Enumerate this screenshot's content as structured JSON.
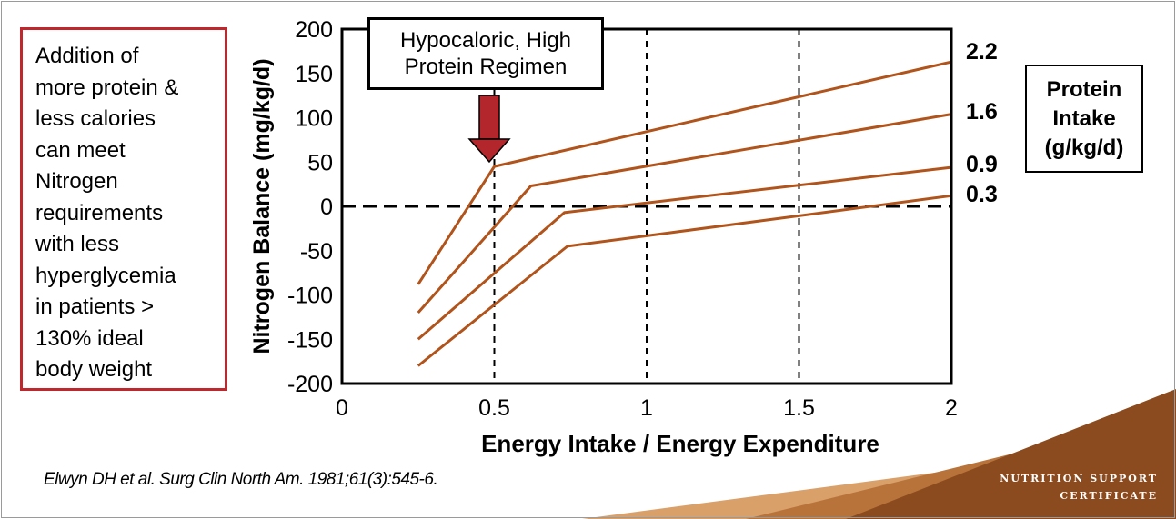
{
  "note": {
    "lines": [
      "Addition of",
      "more protein &",
      "less calories",
      "can meet",
      "Nitrogen",
      "requirements",
      "with less",
      "hyperglycemia",
      "in patients >",
      "130% ideal",
      "body weight"
    ]
  },
  "callout": {
    "lines": [
      "Hypocaloric, High",
      "Protein Regimen"
    ]
  },
  "legend": {
    "title_lines": [
      "Protein",
      "Intake",
      "(g/kg/d)"
    ]
  },
  "citation": "Elwyn DH et al. Surg Clin North Am. 1981;61(3):545-6.",
  "brand": {
    "line1": "NUTRITION SUPPORT",
    "line2": "CERTIFICATE"
  },
  "colors": {
    "series": "#b0541c",
    "arrow": "#b3262c",
    "note_border": "#c0272d",
    "decor_dark": "#8b4b1e",
    "decor_mid": "#b8733a",
    "decor_light": "#d9a06a"
  },
  "chart_data": {
    "type": "line",
    "title": "",
    "xlabel": "Energy Intake / Energy Expenditure",
    "ylabel": "Nitrogen Balance (mg/kg/d)",
    "xlim": [
      0,
      2
    ],
    "ylim": [
      -200,
      200
    ],
    "x_ticks": [
      "0",
      "0.5",
      "1",
      "1.5",
      "2"
    ],
    "y_ticks": [
      "200",
      "150",
      "100",
      "50",
      "0",
      "-50",
      "-100",
      "-150",
      "-200"
    ],
    "grid": "dashed vertical lines at x = 0.5, 1, 1.5; dashed horizontal line at y = 0",
    "legend_title": "Protein Intake (g/kg/d)",
    "legend_position": "right",
    "series": [
      {
        "name": "2.2",
        "points": [
          [
            0.25,
            -88
          ],
          [
            0.5,
            45
          ],
          [
            2.0,
            163
          ]
        ]
      },
      {
        "name": "1.6",
        "points": [
          [
            0.25,
            -120
          ],
          [
            0.62,
            23
          ],
          [
            2.0,
            104
          ]
        ]
      },
      {
        "name": "0.9",
        "points": [
          [
            0.25,
            -150
          ],
          [
            0.73,
            -7
          ],
          [
            2.0,
            44
          ]
        ]
      },
      {
        "name": "0.3",
        "points": [
          [
            0.25,
            -180
          ],
          [
            0.74,
            -45
          ],
          [
            2.0,
            12
          ]
        ]
      }
    ],
    "annotation": {
      "text": "Hypocaloric, High Protein Regimen",
      "points_to": [
        0.5,
        45
      ]
    }
  }
}
